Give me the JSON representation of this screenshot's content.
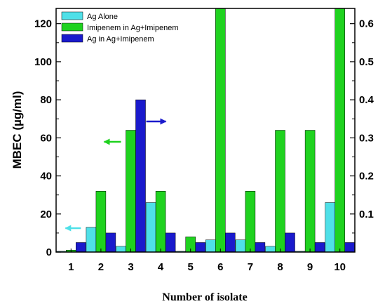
{
  "chart_data": {
    "type": "bar",
    "title": "",
    "xlabel": "Number of isolate",
    "ylabel": "MBEC (µg/ml)",
    "ylim": [
      0,
      128
    ],
    "y2lim": [
      0,
      0.64
    ],
    "yticks": [
      "0",
      "20",
      "40",
      "60",
      "80",
      "100",
      "120"
    ],
    "y2ticks": [
      "0.1",
      "0.2",
      "0.3",
      "0.4",
      "0.5",
      "0.6"
    ],
    "categories": [
      "1",
      "2",
      "3",
      "4",
      "5",
      "6",
      "7",
      "8",
      "9",
      "10"
    ],
    "legend_position": "top-left",
    "grid": false,
    "series": [
      {
        "name": "Ag Alone",
        "axis": "right",
        "color": "#4fe0e8",
        "values": [
          0.002,
          0.065,
          0.015,
          0.13,
          0.002,
          0.032,
          0.032,
          0.015,
          0.002,
          0.13
        ]
      },
      {
        "name": "Imipenem in Ag+Imipenem",
        "axis": "left",
        "color": "#1fd21f",
        "values": [
          1,
          32,
          64,
          32,
          8,
          128,
          32,
          64,
          64,
          128
        ]
      },
      {
        "name": "Ag in Ag+Imipenem",
        "axis": "right",
        "color": "#1a1acc",
        "values": [
          0.025,
          0.05,
          0.4,
          0.05,
          0.025,
          0.05,
          0.025,
          0.05,
          0.025,
          0.025
        ]
      }
    ],
    "annotations": [
      {
        "type": "arrow",
        "category": "1",
        "points_to": "left",
        "color": "#4fe0e8"
      },
      {
        "type": "arrow",
        "category": "3",
        "points_to": "left",
        "color": "#1fd21f"
      },
      {
        "type": "arrow",
        "category": "3",
        "points_to": "right",
        "color": "#1a1acc"
      }
    ]
  }
}
